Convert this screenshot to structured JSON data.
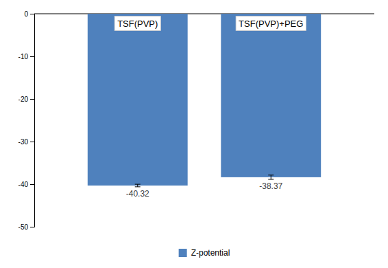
{
  "chart_data": {
    "type": "bar",
    "categories": [
      "TSF(PVP)",
      "TSF(PVP)+PEG"
    ],
    "series": [
      {
        "name": "Z-potential",
        "color": "#4F81BD",
        "values": [
          -40.32,
          -38.37
        ],
        "errors": [
          0.3,
          0.5
        ]
      }
    ],
    "ylim": [
      -50,
      0
    ],
    "yticks": [
      0,
      -10,
      -20,
      -30,
      -40,
      -50
    ],
    "grid": false,
    "legend": "bottom",
    "data_labels": true
  }
}
